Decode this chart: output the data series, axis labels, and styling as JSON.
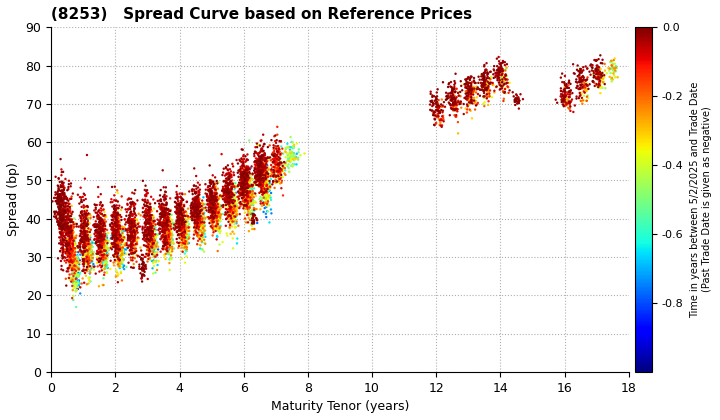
{
  "title": "(8253)   Spread Curve based on Reference Prices",
  "xlabel": "Maturity Tenor (years)",
  "ylabel": "Spread (bp)",
  "colorbar_label_line1": "Time in years between 5/2/2025 and Trade Date",
  "colorbar_label_line2": "(Past Trade Date is given as negative)",
  "xlim": [
    0,
    18
  ],
  "ylim": [
    0,
    90
  ],
  "xticks": [
    0,
    2,
    4,
    6,
    8,
    10,
    12,
    14,
    16,
    18
  ],
  "yticks": [
    0,
    10,
    20,
    30,
    40,
    50,
    60,
    70,
    80,
    90
  ],
  "cmap": "jet",
  "vmin": -1.0,
  "vmax": 0.0,
  "colorbar_ticks": [
    0.0,
    -0.2,
    -0.4,
    -0.6,
    -0.8
  ],
  "background_color": "#ffffff",
  "grid_color": "#b0b0b0",
  "point_size": 3,
  "clusters": [
    {
      "x_center": 0.25,
      "x_spread": 0.08,
      "y_center": 44,
      "y_spread": 3,
      "n": 120,
      "c_min": -0.05,
      "c_max": 0.0
    },
    {
      "x_center": 0.35,
      "x_spread": 0.06,
      "y_center": 40,
      "y_spread": 5,
      "n": 200,
      "c_min": -0.08,
      "c_max": 0.0
    },
    {
      "x_center": 0.5,
      "x_spread": 0.08,
      "y_center": 37,
      "y_spread": 5,
      "n": 200,
      "c_min": -0.12,
      "c_max": 0.0
    },
    {
      "x_center": 0.6,
      "x_spread": 0.06,
      "y_center": 33,
      "y_spread": 4,
      "n": 150,
      "c_min": -0.3,
      "c_max": -0.05
    },
    {
      "x_center": 0.7,
      "x_spread": 0.06,
      "y_center": 29,
      "y_spread": 4,
      "n": 150,
      "c_min": -0.6,
      "c_max": -0.1
    },
    {
      "x_center": 0.8,
      "x_spread": 0.06,
      "y_center": 26,
      "y_spread": 3,
      "n": 100,
      "c_min": -0.9,
      "c_max": -0.3
    },
    {
      "x_center": 1.0,
      "x_spread": 0.08,
      "y_center": 37,
      "y_spread": 5,
      "n": 200,
      "c_min": -0.1,
      "c_max": 0.0
    },
    {
      "x_center": 1.1,
      "x_spread": 0.07,
      "y_center": 33,
      "y_spread": 4,
      "n": 150,
      "c_min": -0.4,
      "c_max": -0.05
    },
    {
      "x_center": 1.2,
      "x_spread": 0.06,
      "y_center": 30,
      "y_spread": 3,
      "n": 100,
      "c_min": -0.8,
      "c_max": -0.2
    },
    {
      "x_center": 1.5,
      "x_spread": 0.08,
      "y_center": 37,
      "y_spread": 4,
      "n": 200,
      "c_min": -0.1,
      "c_max": 0.0
    },
    {
      "x_center": 1.6,
      "x_spread": 0.07,
      "y_center": 34,
      "y_spread": 4,
      "n": 150,
      "c_min": -0.4,
      "c_max": -0.05
    },
    {
      "x_center": 1.7,
      "x_spread": 0.06,
      "y_center": 31,
      "y_spread": 3,
      "n": 100,
      "c_min": -0.8,
      "c_max": -0.2
    },
    {
      "x_center": 2.0,
      "x_spread": 0.08,
      "y_center": 38,
      "y_spread": 4,
      "n": 200,
      "c_min": -0.1,
      "c_max": 0.0
    },
    {
      "x_center": 2.1,
      "x_spread": 0.07,
      "y_center": 35,
      "y_spread": 4,
      "n": 150,
      "c_min": -0.4,
      "c_max": -0.05
    },
    {
      "x_center": 2.2,
      "x_spread": 0.06,
      "y_center": 32,
      "y_spread": 3,
      "n": 100,
      "c_min": -0.8,
      "c_max": -0.2
    },
    {
      "x_center": 2.5,
      "x_spread": 0.08,
      "y_center": 38,
      "y_spread": 4,
      "n": 200,
      "c_min": -0.1,
      "c_max": 0.0
    },
    {
      "x_center": 2.6,
      "x_spread": 0.07,
      "y_center": 35,
      "y_spread": 3,
      "n": 100,
      "c_min": -0.4,
      "c_max": -0.05
    },
    {
      "x_center": 2.85,
      "x_spread": 0.05,
      "y_center": 27,
      "y_spread": 1.5,
      "n": 40,
      "c_min": -0.05,
      "c_max": 0.0
    },
    {
      "x_center": 3.0,
      "x_spread": 0.08,
      "y_center": 39,
      "y_spread": 4,
      "n": 200,
      "c_min": -0.1,
      "c_max": 0.0
    },
    {
      "x_center": 3.1,
      "x_spread": 0.07,
      "y_center": 36,
      "y_spread": 3,
      "n": 150,
      "c_min": -0.4,
      "c_max": -0.05
    },
    {
      "x_center": 3.2,
      "x_spread": 0.06,
      "y_center": 33,
      "y_spread": 3,
      "n": 100,
      "c_min": -0.8,
      "c_max": -0.2
    },
    {
      "x_center": 3.5,
      "x_spread": 0.08,
      "y_center": 40,
      "y_spread": 4,
      "n": 200,
      "c_min": -0.1,
      "c_max": 0.0
    },
    {
      "x_center": 3.6,
      "x_spread": 0.07,
      "y_center": 37,
      "y_spread": 3,
      "n": 150,
      "c_min": -0.4,
      "c_max": -0.05
    },
    {
      "x_center": 3.7,
      "x_spread": 0.06,
      "y_center": 35,
      "y_spread": 3,
      "n": 100,
      "c_min": -0.7,
      "c_max": -0.2
    },
    {
      "x_center": 4.0,
      "x_spread": 0.08,
      "y_center": 41,
      "y_spread": 3,
      "n": 200,
      "c_min": -0.1,
      "c_max": 0.0
    },
    {
      "x_center": 4.1,
      "x_spread": 0.07,
      "y_center": 38,
      "y_spread": 3,
      "n": 150,
      "c_min": -0.4,
      "c_max": -0.05
    },
    {
      "x_center": 4.2,
      "x_spread": 0.06,
      "y_center": 36,
      "y_spread": 3,
      "n": 100,
      "c_min": -0.7,
      "c_max": -0.2
    },
    {
      "x_center": 4.5,
      "x_spread": 0.08,
      "y_center": 43,
      "y_spread": 3,
      "n": 200,
      "c_min": -0.1,
      "c_max": 0.0
    },
    {
      "x_center": 4.6,
      "x_spread": 0.07,
      "y_center": 40,
      "y_spread": 3,
      "n": 150,
      "c_min": -0.4,
      "c_max": -0.05
    },
    {
      "x_center": 4.7,
      "x_spread": 0.06,
      "y_center": 38,
      "y_spread": 3,
      "n": 100,
      "c_min": -0.7,
      "c_max": -0.2
    },
    {
      "x_center": 5.0,
      "x_spread": 0.08,
      "y_center": 45,
      "y_spread": 3,
      "n": 200,
      "c_min": -0.1,
      "c_max": 0.0
    },
    {
      "x_center": 5.1,
      "x_spread": 0.07,
      "y_center": 42,
      "y_spread": 3,
      "n": 150,
      "c_min": -0.4,
      "c_max": -0.05
    },
    {
      "x_center": 5.2,
      "x_spread": 0.06,
      "y_center": 40,
      "y_spread": 3,
      "n": 100,
      "c_min": -0.7,
      "c_max": -0.2
    },
    {
      "x_center": 5.5,
      "x_spread": 0.08,
      "y_center": 47,
      "y_spread": 3,
      "n": 200,
      "c_min": -0.1,
      "c_max": 0.0
    },
    {
      "x_center": 5.6,
      "x_spread": 0.07,
      "y_center": 44,
      "y_spread": 3,
      "n": 150,
      "c_min": -0.45,
      "c_max": -0.05
    },
    {
      "x_center": 5.7,
      "x_spread": 0.06,
      "y_center": 42,
      "y_spread": 3,
      "n": 100,
      "c_min": -0.7,
      "c_max": -0.2
    },
    {
      "x_center": 6.0,
      "x_spread": 0.1,
      "y_center": 50,
      "y_spread": 3,
      "n": 250,
      "c_min": -0.1,
      "c_max": 0.0
    },
    {
      "x_center": 6.1,
      "x_spread": 0.09,
      "y_center": 47,
      "y_spread": 3,
      "n": 200,
      "c_min": -0.5,
      "c_max": -0.05
    },
    {
      "x_center": 6.2,
      "x_spread": 0.08,
      "y_center": 45,
      "y_spread": 3,
      "n": 150,
      "c_min": -0.8,
      "c_max": -0.2
    },
    {
      "x_center": 6.5,
      "x_spread": 0.1,
      "y_center": 53,
      "y_spread": 3,
      "n": 250,
      "c_min": -0.1,
      "c_max": 0.0
    },
    {
      "x_center": 6.6,
      "x_spread": 0.09,
      "y_center": 50,
      "y_spread": 3,
      "n": 200,
      "c_min": -0.5,
      "c_max": -0.05
    },
    {
      "x_center": 6.7,
      "x_spread": 0.08,
      "y_center": 48,
      "y_spread": 3,
      "n": 150,
      "c_min": -0.8,
      "c_max": -0.3
    },
    {
      "x_center": 7.0,
      "x_spread": 0.1,
      "y_center": 55,
      "y_spread": 3,
      "n": 150,
      "c_min": -0.2,
      "c_max": 0.0
    },
    {
      "x_center": 7.1,
      "x_spread": 0.09,
      "y_center": 53,
      "y_spread": 2,
      "n": 100,
      "c_min": -0.6,
      "c_max": -0.1
    },
    {
      "x_center": 7.5,
      "x_spread": 0.1,
      "y_center": 57,
      "y_spread": 2,
      "n": 80,
      "c_min": -0.7,
      "c_max": -0.3
    },
    {
      "x_center": 6.3,
      "x_spread": 0.05,
      "y_center": 40,
      "y_spread": 1,
      "n": 20,
      "c_min": -0.05,
      "c_max": 0.0
    },
    {
      "x_center": 12.0,
      "x_spread": 0.1,
      "y_center": 69,
      "y_spread": 2,
      "n": 60,
      "c_min": -0.05,
      "c_max": 0.0
    },
    {
      "x_center": 12.1,
      "x_spread": 0.08,
      "y_center": 67,
      "y_spread": 2,
      "n": 40,
      "c_min": -0.25,
      "c_max": -0.05
    },
    {
      "x_center": 12.5,
      "x_spread": 0.1,
      "y_center": 72,
      "y_spread": 2,
      "n": 80,
      "c_min": -0.05,
      "c_max": 0.0
    },
    {
      "x_center": 12.6,
      "x_spread": 0.09,
      "y_center": 70,
      "y_spread": 2,
      "n": 60,
      "c_min": -0.3,
      "c_max": -0.05
    },
    {
      "x_center": 13.0,
      "x_spread": 0.1,
      "y_center": 74,
      "y_spread": 2,
      "n": 80,
      "c_min": -0.05,
      "c_max": 0.0
    },
    {
      "x_center": 13.1,
      "x_spread": 0.09,
      "y_center": 72,
      "y_spread": 2,
      "n": 60,
      "c_min": -0.35,
      "c_max": -0.05
    },
    {
      "x_center": 13.5,
      "x_spread": 0.1,
      "y_center": 76,
      "y_spread": 2,
      "n": 80,
      "c_min": -0.05,
      "c_max": 0.0
    },
    {
      "x_center": 13.6,
      "x_spread": 0.09,
      "y_center": 74,
      "y_spread": 2,
      "n": 60,
      "c_min": -0.45,
      "c_max": -0.05
    },
    {
      "x_center": 14.0,
      "x_spread": 0.1,
      "y_center": 78,
      "y_spread": 2,
      "n": 80,
      "c_min": -0.05,
      "c_max": 0.0
    },
    {
      "x_center": 14.1,
      "x_spread": 0.09,
      "y_center": 76,
      "y_spread": 2,
      "n": 60,
      "c_min": -0.5,
      "c_max": -0.05
    },
    {
      "x_center": 14.5,
      "x_spread": 0.08,
      "y_center": 71,
      "y_spread": 1,
      "n": 30,
      "c_min": -0.05,
      "c_max": 0.0
    },
    {
      "x_center": 16.0,
      "x_spread": 0.1,
      "y_center": 73,
      "y_spread": 2,
      "n": 60,
      "c_min": -0.05,
      "c_max": 0.0
    },
    {
      "x_center": 16.1,
      "x_spread": 0.09,
      "y_center": 71,
      "y_spread": 2,
      "n": 40,
      "c_min": -0.3,
      "c_max": -0.05
    },
    {
      "x_center": 16.5,
      "x_spread": 0.1,
      "y_center": 76,
      "y_spread": 2,
      "n": 70,
      "c_min": -0.05,
      "c_max": 0.0
    },
    {
      "x_center": 16.6,
      "x_spread": 0.09,
      "y_center": 74,
      "y_spread": 2,
      "n": 50,
      "c_min": -0.45,
      "c_max": -0.05
    },
    {
      "x_center": 17.0,
      "x_spread": 0.1,
      "y_center": 78,
      "y_spread": 2,
      "n": 70,
      "c_min": -0.05,
      "c_max": 0.0
    },
    {
      "x_center": 17.1,
      "x_spread": 0.09,
      "y_center": 76,
      "y_spread": 2,
      "n": 50,
      "c_min": -0.5,
      "c_max": -0.1
    },
    {
      "x_center": 17.5,
      "x_spread": 0.08,
      "y_center": 79,
      "y_spread": 1.5,
      "n": 40,
      "c_min": -0.6,
      "c_max": -0.2
    }
  ]
}
